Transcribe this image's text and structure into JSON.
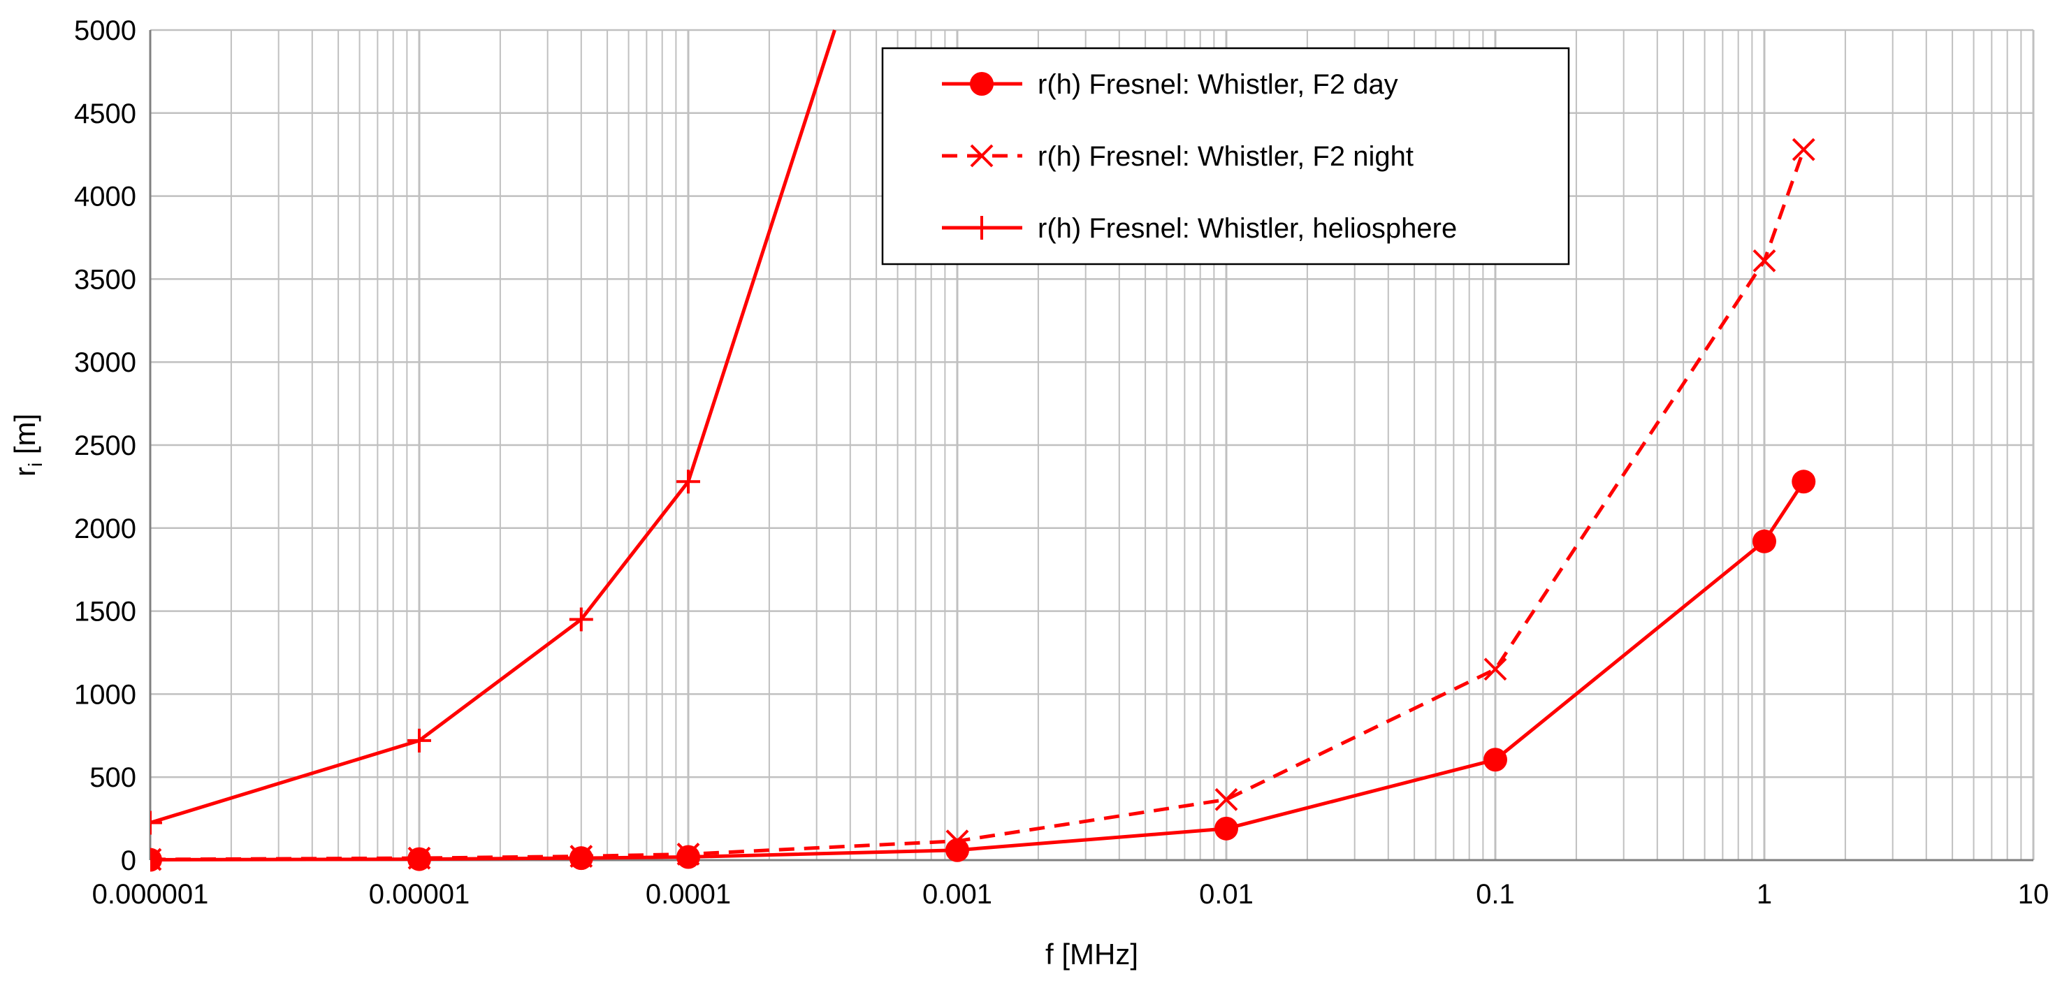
{
  "chart_data": {
    "type": "line",
    "xlabel": "f [MHz]",
    "ylabel": "r",
    "ylabel_sub": "i",
    "ylabel_unit": " [m]",
    "x_scale": "log",
    "xlim": [
      1e-06,
      10
    ],
    "ylim": [
      0,
      5000
    ],
    "x_ticks": [
      1e-06,
      1e-05,
      0.0001,
      0.001,
      0.01,
      0.1,
      1,
      10
    ],
    "x_tick_labels": [
      "0.000001",
      "0.00001",
      "0.0001",
      "0.001",
      "0.01",
      "0.1",
      "1",
      "10"
    ],
    "y_ticks": [
      0,
      500,
      1000,
      1500,
      2000,
      2500,
      3000,
      3500,
      4000,
      4500,
      5000
    ],
    "y_tick_labels": [
      "0",
      "500",
      "1000",
      "1500",
      "2000",
      "2500",
      "3000",
      "3500",
      "4000",
      "4500",
      "5000"
    ],
    "grid": true,
    "legend_position": "top-center",
    "colors": {
      "series": "#ff0000",
      "grid": "#c0c0c0",
      "axis": "#808080"
    },
    "series": [
      {
        "name": "r(h) Fresnel: Whistler, F2 day",
        "marker": "circle",
        "line": "solid",
        "x": [
          1e-06,
          1e-05,
          4e-05,
          0.0001,
          0.001,
          0.01,
          0.1,
          1,
          1.4
        ],
        "y": [
          2,
          6,
          12,
          19,
          60,
          190,
          605,
          1920,
          2280
        ]
      },
      {
        "name": "r(h) Fresnel: Whistler, F2 night",
        "marker": "x",
        "line": "dashed",
        "x": [
          1e-06,
          1e-05,
          4e-05,
          0.0001,
          0.001,
          0.01,
          0.1,
          1,
          1.4
        ],
        "y": [
          4,
          12,
          23,
          36,
          115,
          365,
          1150,
          3610,
          4280
        ]
      },
      {
        "name": "r(h) Fresnel: Whistler, heliosphere",
        "marker": "plus",
        "line": "solid",
        "x": [
          1e-06,
          1e-05,
          4e-05,
          0.0001,
          0.00035
        ],
        "y": [
          225,
          720,
          1450,
          2280,
          5000
        ]
      }
    ]
  }
}
